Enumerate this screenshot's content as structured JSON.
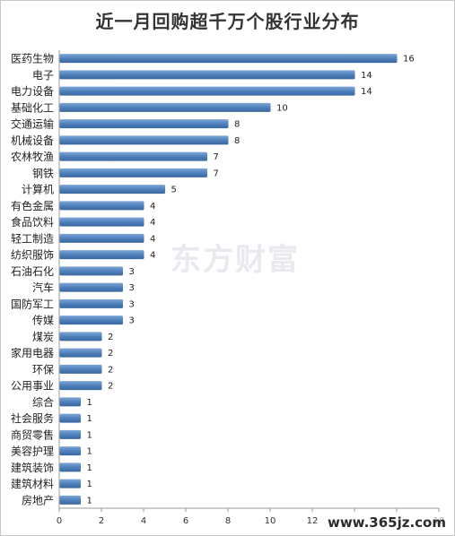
{
  "chart_data": {
    "type": "bar",
    "orientation": "horizontal",
    "title": "近一月回购超千万个股行业分布",
    "categories": [
      "医药生物",
      "电子",
      "电力设备",
      "基础化工",
      "交通运输",
      "机械设备",
      "农林牧渔",
      "钢铁",
      "计算机",
      "有色金属",
      "食品饮料",
      "轻工制造",
      "纺织服饰",
      "石油石化",
      "汽车",
      "国防军工",
      "传媒",
      "煤炭",
      "家用电器",
      "环保",
      "公用事业",
      "综合",
      "社会服务",
      "商贸零售",
      "美容护理",
      "建筑装饰",
      "建筑材料",
      "房地产"
    ],
    "values": [
      16,
      14,
      14,
      10,
      8,
      8,
      7,
      7,
      5,
      4,
      4,
      4,
      4,
      3,
      3,
      3,
      3,
      2,
      2,
      2,
      2,
      1,
      1,
      1,
      1,
      1,
      1,
      1
    ],
    "xlim": [
      0,
      18
    ],
    "xticks": [
      0,
      2,
      4,
      6,
      8,
      10,
      12,
      14,
      16,
      18
    ],
    "xtick_labels": [
      "0",
      "2",
      "4",
      "6",
      "8",
      "10",
      "12",
      "",
      "",
      "18"
    ],
    "grid": false,
    "bar_color": "#4f81bd"
  },
  "watermark": "东方财富",
  "site": "www.365jz.com"
}
